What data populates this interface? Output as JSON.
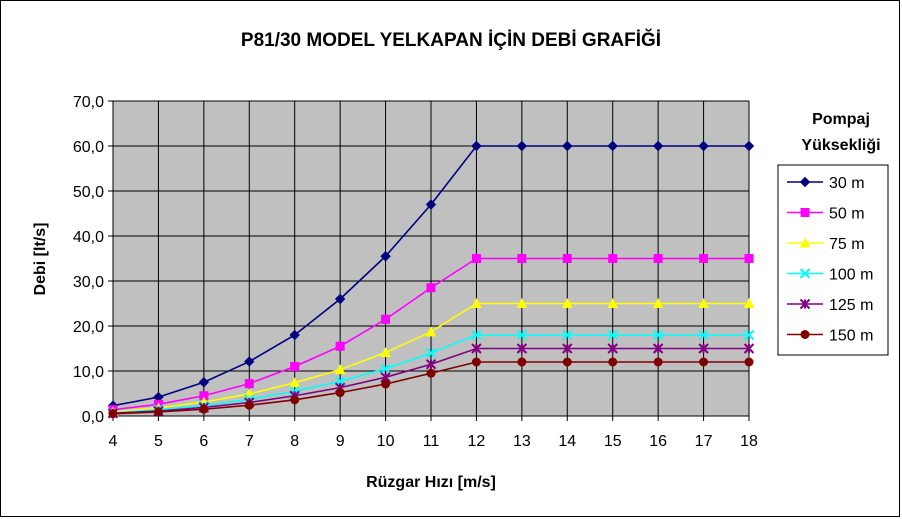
{
  "chart_data": {
    "type": "line",
    "title": "P81/30 MODEL YELKAPAN İÇİN DEBİ GRAFİĞİ",
    "xlabel": "Rüzgar Hızı [m/s]",
    "ylabel": "Debi [lt/s]",
    "x": [
      4,
      5,
      6,
      7,
      8,
      9,
      10,
      11,
      12,
      13,
      14,
      15,
      16,
      17,
      18
    ],
    "x_tick_labels": [
      "4",
      "5",
      "6",
      "7",
      "8",
      "9",
      "10",
      "11",
      "12",
      "13",
      "14",
      "15",
      "16",
      "17",
      "18"
    ],
    "ylim": [
      0,
      70
    ],
    "y_ticks": [
      0,
      10,
      20,
      30,
      40,
      50,
      60,
      70
    ],
    "y_tick_labels": [
      "0,0",
      "10,0",
      "20,0",
      "30,0",
      "40,0",
      "50,0",
      "60,0",
      "70,0"
    ],
    "grid": true,
    "plot_background": "#c0c0c0",
    "legend_title_lines": [
      "Pompaj",
      "Yüksekliği"
    ],
    "legend_position": "right",
    "series": [
      {
        "name": "30 m",
        "color": "#000080",
        "marker": "diamond",
        "values": [
          2.3,
          4.2,
          7.5,
          12.1,
          18.0,
          26.0,
          35.5,
          47.0,
          60.0,
          60.0,
          60.0,
          60.0,
          60.0,
          60.0,
          60.0
        ]
      },
      {
        "name": "50 m",
        "color": "#ff00ff",
        "marker": "square",
        "values": [
          1.4,
          2.6,
          4.5,
          7.2,
          11.0,
          15.5,
          21.5,
          28.5,
          35.0,
          35.0,
          35.0,
          35.0,
          35.0,
          35.0,
          35.0
        ]
      },
      {
        "name": "75 m",
        "color": "#ffff00",
        "marker": "triangle",
        "values": [
          0.9,
          1.8,
          3.1,
          4.9,
          7.4,
          10.3,
          14.1,
          18.7,
          25.0,
          25.0,
          25.0,
          25.0,
          25.0,
          25.0,
          25.0
        ]
      },
      {
        "name": "100 m",
        "color": "#00ffff",
        "marker": "x",
        "values": [
          0.7,
          1.4,
          2.3,
          3.7,
          5.5,
          7.7,
          10.5,
          14.0,
          18.0,
          18.0,
          18.0,
          18.0,
          18.0,
          18.0,
          18.0
        ]
      },
      {
        "name": "125 m",
        "color": "#800080",
        "marker": "star",
        "values": [
          0.6,
          1.1,
          1.9,
          3.0,
          4.5,
          6.3,
          8.6,
          11.5,
          15.0,
          15.0,
          15.0,
          15.0,
          15.0,
          15.0,
          15.0
        ]
      },
      {
        "name": "150 m",
        "color": "#800000",
        "marker": "circle",
        "values": [
          0.5,
          0.9,
          1.5,
          2.4,
          3.6,
          5.2,
          7.1,
          9.5,
          12.0,
          12.0,
          12.0,
          12.0,
          12.0,
          12.0,
          12.0
        ]
      }
    ]
  }
}
